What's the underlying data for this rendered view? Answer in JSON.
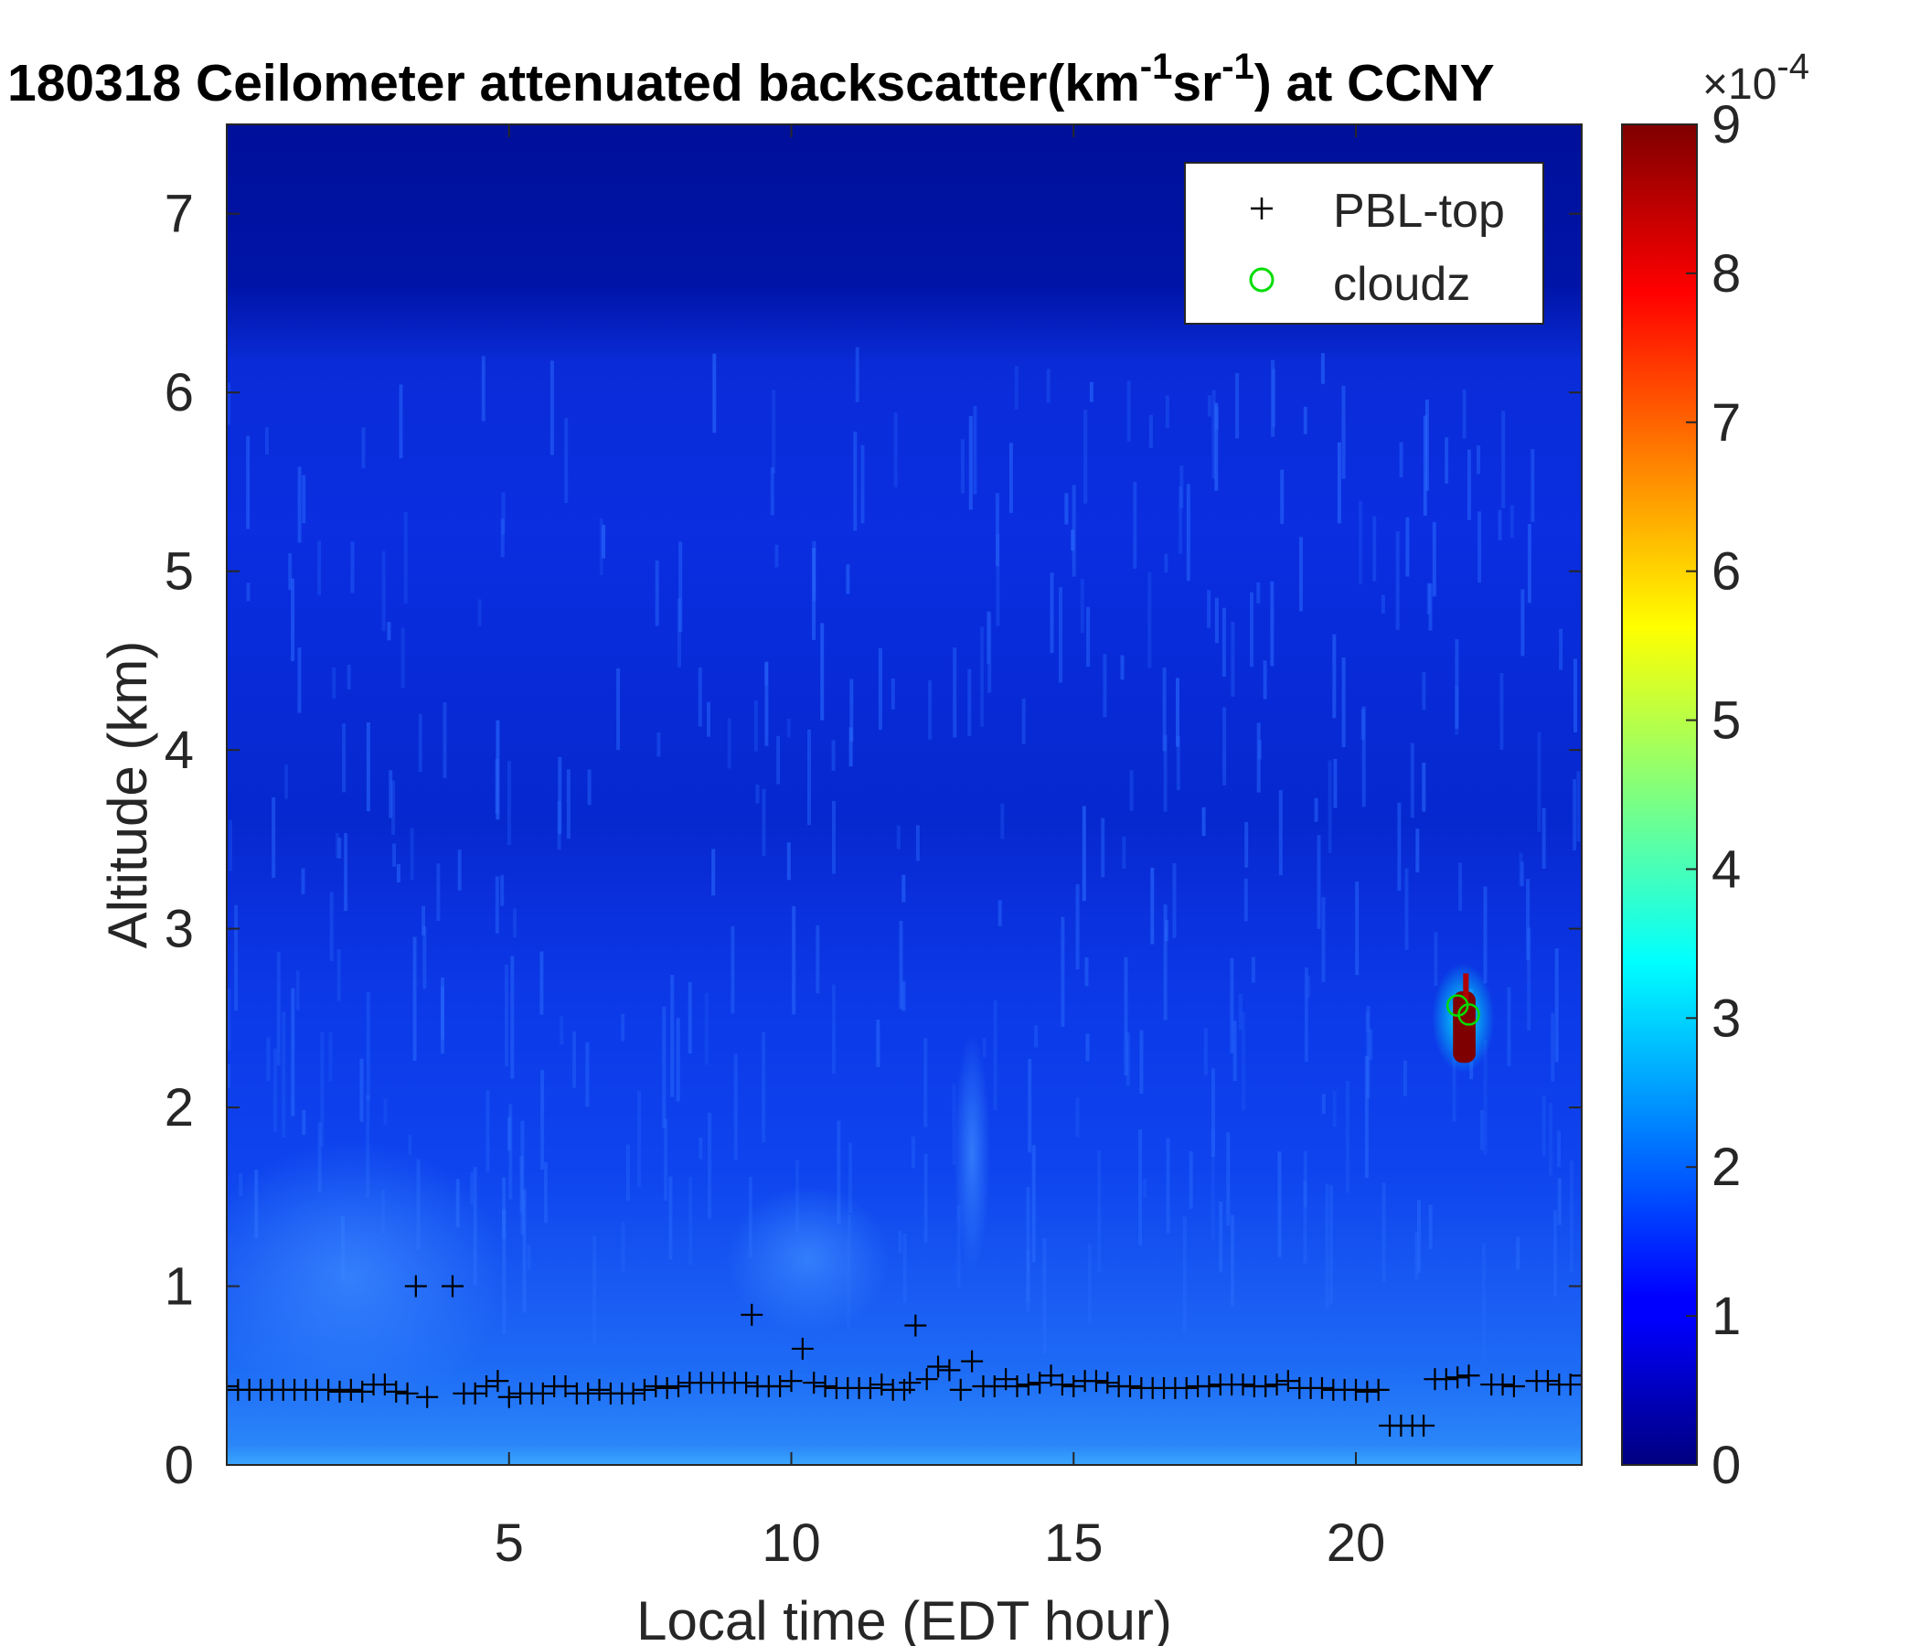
{
  "chart_data": {
    "type": "heatmap",
    "title_main": "180318 Ceilometer attenuated backscatter(km",
    "title_sup1": "-1",
    "title_mid": "sr",
    "title_sup2": "-1",
    "title_end": ") at CCNY",
    "xlabel": "Local time (EDT hour)",
    "ylabel": "Altitude (km)",
    "xlim": [
      0,
      24
    ],
    "ylim": [
      0,
      7.5
    ],
    "xticks": [
      5,
      10,
      15,
      20
    ],
    "yticks": [
      0,
      1,
      2,
      3,
      4,
      5,
      6,
      7
    ],
    "colorbar": {
      "range": [
        0,
        9
      ],
      "ticks": [
        0,
        1,
        2,
        3,
        4,
        5,
        6,
        7,
        8,
        9
      ],
      "scale_prefix": "×10",
      "scale_exp": "-4",
      "colormap": "jet"
    },
    "legend": {
      "position": "top-right",
      "entries": [
        {
          "label": "PBL-top",
          "marker": "+",
          "color": "#000000"
        },
        {
          "label": "cloudz",
          "marker": "o",
          "color": "#00dd00"
        }
      ]
    },
    "series": [
      {
        "name": "PBL-top",
        "x": [
          0.0,
          0.2,
          0.4,
          0.6,
          0.8,
          1.0,
          1.2,
          1.4,
          1.6,
          1.8,
          2.0,
          2.2,
          2.4,
          2.6,
          2.8,
          3.0,
          3.2,
          3.35,
          3.55,
          4.0,
          4.2,
          4.4,
          4.6,
          4.8,
          5.0,
          5.2,
          5.4,
          5.6,
          5.8,
          6.0,
          6.2,
          6.4,
          6.6,
          6.8,
          7.0,
          7.2,
          7.4,
          7.6,
          7.8,
          8.0,
          8.2,
          8.4,
          8.6,
          8.8,
          9.0,
          9.2,
          9.3,
          9.4,
          9.6,
          9.8,
          10.0,
          10.2,
          10.4,
          10.6,
          10.8,
          11.0,
          11.2,
          11.4,
          11.6,
          11.8,
          12.0,
          12.1,
          12.2,
          12.4,
          12.6,
          12.8,
          13.0,
          13.2,
          13.4,
          13.6,
          13.8,
          14.0,
          14.2,
          14.4,
          14.6,
          14.8,
          15.0,
          15.2,
          15.4,
          15.6,
          15.8,
          16.0,
          16.2,
          16.4,
          16.6,
          16.8,
          17.0,
          17.2,
          17.4,
          17.6,
          17.8,
          18.0,
          18.2,
          18.4,
          18.6,
          18.8,
          19.0,
          19.2,
          19.4,
          19.6,
          19.8,
          20.0,
          20.2,
          20.4,
          20.6,
          20.8,
          21.0,
          21.2,
          21.4,
          21.6,
          21.8,
          22.0,
          22.4,
          22.6,
          22.8,
          23.2,
          23.4,
          23.6,
          23.8,
          24.0
        ],
        "values": [
          0.44,
          0.42,
          0.42,
          0.42,
          0.42,
          0.42,
          0.42,
          0.42,
          0.42,
          0.42,
          0.41,
          0.42,
          0.41,
          0.45,
          0.45,
          0.41,
          0.4,
          1.0,
          0.38,
          1.0,
          0.4,
          0.4,
          0.44,
          0.47,
          0.38,
          0.4,
          0.4,
          0.4,
          0.44,
          0.44,
          0.4,
          0.4,
          0.42,
          0.4,
          0.4,
          0.4,
          0.42,
          0.44,
          0.43,
          0.44,
          0.46,
          0.46,
          0.46,
          0.46,
          0.46,
          0.46,
          0.84,
          0.44,
          0.44,
          0.44,
          0.47,
          0.65,
          0.46,
          0.44,
          0.43,
          0.43,
          0.43,
          0.43,
          0.45,
          0.42,
          0.42,
          0.46,
          0.78,
          0.48,
          0.55,
          0.53,
          0.42,
          0.58,
          0.44,
          0.44,
          0.48,
          0.44,
          0.45,
          0.46,
          0.5,
          0.45,
          0.44,
          0.47,
          0.47,
          0.46,
          0.44,
          0.44,
          0.43,
          0.43,
          0.43,
          0.43,
          0.43,
          0.44,
          0.44,
          0.45,
          0.45,
          0.45,
          0.44,
          0.44,
          0.45,
          0.47,
          0.43,
          0.43,
          0.43,
          0.42,
          0.42,
          0.42,
          0.41,
          0.42,
          0.22,
          0.22,
          0.22,
          0.22,
          0.48,
          0.48,
          0.49,
          0.5,
          0.45,
          0.45,
          0.44,
          0.47,
          0.47,
          0.45,
          0.45,
          0.5
        ]
      },
      {
        "name": "cloudz",
        "x": [
          21.8,
          22.0
        ],
        "values": [
          2.57,
          2.52
        ]
      }
    ]
  }
}
